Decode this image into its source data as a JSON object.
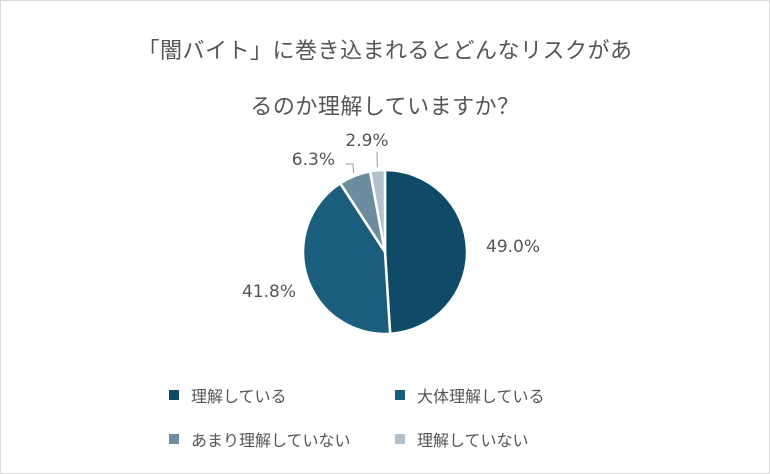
{
  "chart_data": {
    "type": "pie",
    "title_line1": "「闇バイト」に巻き込まれるとどんなリスクがあ",
    "title_line2": "るのか理解していますか？",
    "categories": [
      "理解している",
      "大体理解している",
      "あまり理解していない",
      "理解していない"
    ],
    "values": [
      49.0,
      41.8,
      6.3,
      2.9
    ],
    "labels": [
      "49.0%",
      "41.8%",
      "6.3%",
      "2.9%"
    ],
    "colors": [
      "#0f4a68",
      "#1a5d7c",
      "#6c8c9f",
      "#b3c1cd"
    ],
    "legend_position": "bottom"
  }
}
